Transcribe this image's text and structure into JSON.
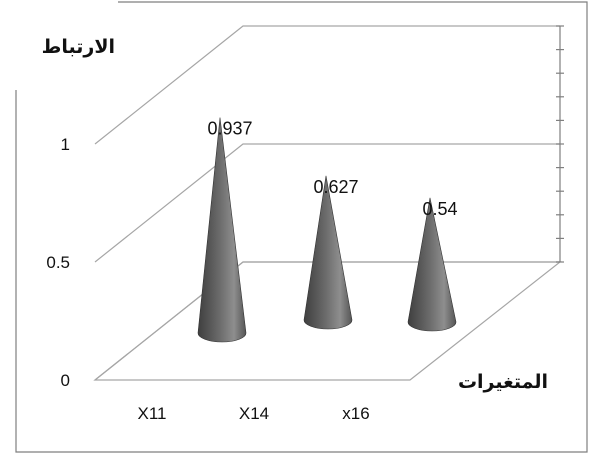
{
  "chart_data": {
    "type": "bar",
    "shape": "cone",
    "three_d": true,
    "categories": [
      "X11",
      "X14",
      "x16"
    ],
    "values": [
      0.937,
      0.627,
      0.54
    ],
    "data_labels": [
      "0.937",
      "0.627",
      "0.54"
    ],
    "y_ticks": [
      {
        "value": 0,
        "label": "0"
      },
      {
        "value": 0.5,
        "label": "0.5"
      },
      {
        "value": 1,
        "label": "1"
      }
    ],
    "ylim": [
      0,
      1.3
    ],
    "ylabel": "الارتباط",
    "xlabel": "المتغيرات",
    "title": "",
    "grid": true,
    "legend": "none",
    "colors": {
      "cone": "#6b6b6b",
      "cone_dark": "#3f3f3f",
      "cone_light": "#8e8e8e",
      "wall_lines": "#a6a6a6",
      "frame": "#7f7f7f"
    }
  }
}
